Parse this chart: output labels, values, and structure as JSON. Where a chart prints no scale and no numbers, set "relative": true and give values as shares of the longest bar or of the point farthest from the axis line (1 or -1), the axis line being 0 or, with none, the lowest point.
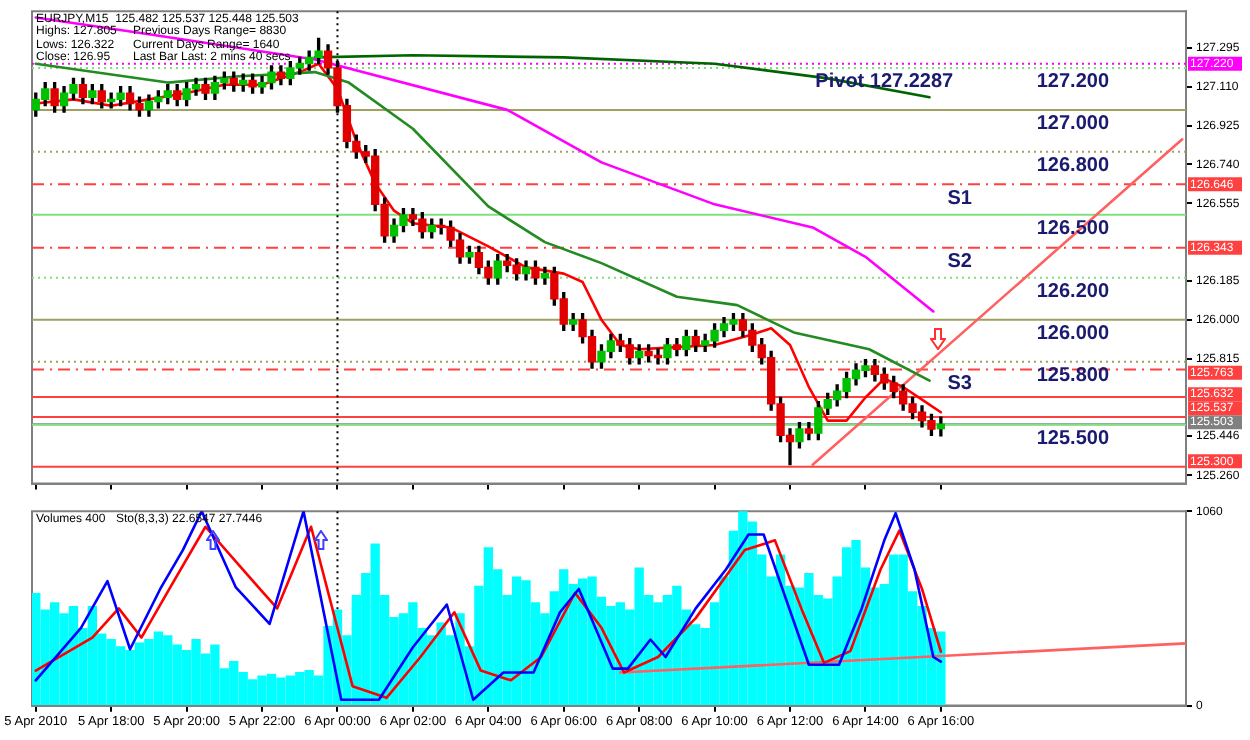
{
  "chart_data": [
    {
      "type": "candlestick",
      "annotations": [
        "EURJPY,M15  125.482 125.537 125.448 125.503",
        "Highs: 127.805",
        "Previous Days Range= 8830",
        "Lows: 126.322",
        "Current Days Range= 1640",
        "Close: 126.95",
        "Last Bar Last: 2 mins 40 secs",
        {
          "text": "Pivot 127.2287",
          "x": "2010-04-06T14:30",
          "y": 127.2
        },
        {
          "text": "127.200",
          "x": "2010-04-06T19:30",
          "y": 127.2
        },
        {
          "text": "127.000",
          "x": "2010-04-06T19:30",
          "y": 127.0
        },
        {
          "text": "126.800",
          "x": "2010-04-06T19:30",
          "y": 126.8
        },
        {
          "text": "S1",
          "x": "2010-04-06T16:30",
          "y": 126.646
        },
        {
          "text": "126.500",
          "x": "2010-04-06T19:30",
          "y": 126.5
        },
        {
          "text": "S2",
          "x": "2010-04-06T16:30",
          "y": 126.343
        },
        {
          "text": "126.200",
          "x": "2010-04-06T19:30",
          "y": 126.2
        },
        {
          "text": "126.000",
          "x": "2010-04-06T19:30",
          "y": 126.0
        },
        {
          "text": "125.800",
          "x": "2010-04-06T19:30",
          "y": 125.8
        },
        {
          "text": "S3",
          "x": "2010-04-06T16:30",
          "y": 125.763
        },
        {
          "text": "125.500",
          "x": "2010-04-06T19:30",
          "y": 125.5
        }
      ],
      "x": [
        "2010-04-05T16:00",
        "2010-04-05T16:15",
        "2010-04-05T16:30",
        "2010-04-05T16:45",
        "2010-04-05T17:00",
        "2010-04-05T17:15",
        "2010-04-05T17:30",
        "2010-04-05T17:45",
        "2010-04-05T18:00",
        "2010-04-05T18:15",
        "2010-04-05T18:30",
        "2010-04-05T18:45",
        "2010-04-05T19:00",
        "2010-04-05T19:15",
        "2010-04-05T19:30",
        "2010-04-05T19:45",
        "2010-04-05T20:00",
        "2010-04-05T20:15",
        "2010-04-05T20:30",
        "2010-04-05T20:45",
        "2010-04-05T21:00",
        "2010-04-05T21:15",
        "2010-04-05T21:30",
        "2010-04-05T21:45",
        "2010-04-05T22:00",
        "2010-04-05T22:15",
        "2010-04-05T22:30",
        "2010-04-05T22:45",
        "2010-04-05T23:00",
        "2010-04-05T23:15",
        "2010-04-05T23:30",
        "2010-04-05T23:45",
        "2010-04-06T00:00",
        "2010-04-06T00:15",
        "2010-04-06T00:30",
        "2010-04-06T00:45",
        "2010-04-06T01:00",
        "2010-04-06T01:15",
        "2010-04-06T01:30",
        "2010-04-06T01:45",
        "2010-04-06T02:00",
        "2010-04-06T02:15",
        "2010-04-06T02:30",
        "2010-04-06T02:45",
        "2010-04-06T03:00",
        "2010-04-06T03:15",
        "2010-04-06T03:30",
        "2010-04-06T03:45",
        "2010-04-06T04:00",
        "2010-04-06T04:15",
        "2010-04-06T04:30",
        "2010-04-06T04:45",
        "2010-04-06T05:00",
        "2010-04-06T05:15",
        "2010-04-06T05:30",
        "2010-04-06T05:45",
        "2010-04-06T06:00",
        "2010-04-06T06:15",
        "2010-04-06T06:30",
        "2010-04-06T06:45",
        "2010-04-06T07:00",
        "2010-04-06T07:15",
        "2010-04-06T07:30",
        "2010-04-06T07:45",
        "2010-04-06T08:00",
        "2010-04-06T08:15",
        "2010-04-06T08:30",
        "2010-04-06T08:45",
        "2010-04-06T09:00",
        "2010-04-06T09:15",
        "2010-04-06T09:30",
        "2010-04-06T09:45",
        "2010-04-06T10:00",
        "2010-04-06T10:15",
        "2010-04-06T10:30",
        "2010-04-06T10:45",
        "2010-04-06T11:00",
        "2010-04-06T11:15",
        "2010-04-06T11:30",
        "2010-04-06T11:45",
        "2010-04-06T12:00",
        "2010-04-06T12:15",
        "2010-04-06T12:30",
        "2010-04-06T12:45",
        "2010-04-06T13:00",
        "2010-04-06T13:15",
        "2010-04-06T13:30",
        "2010-04-06T13:45",
        "2010-04-06T14:00",
        "2010-04-06T14:15",
        "2010-04-06T14:30",
        "2010-04-06T14:45",
        "2010-04-06T15:00",
        "2010-04-06T15:15",
        "2010-04-06T15:30",
        "2010-04-06T15:45",
        "2010-04-06T16:00"
      ],
      "ohlc": [
        [
          127.0,
          127.08,
          126.97,
          127.05
        ],
        [
          127.05,
          127.13,
          127.02,
          127.1
        ],
        [
          127.1,
          127.13,
          126.99,
          127.02
        ],
        [
          127.02,
          127.11,
          126.99,
          127.08
        ],
        [
          127.08,
          127.15,
          127.05,
          127.12
        ],
        [
          127.12,
          127.15,
          127.03,
          127.06
        ],
        [
          127.06,
          127.12,
          127.03,
          127.09
        ],
        [
          127.09,
          127.12,
          127.01,
          127.04
        ],
        [
          127.04,
          127.08,
          127.01,
          127.05
        ],
        [
          127.05,
          127.11,
          127.02,
          127.08
        ],
        [
          127.08,
          127.11,
          127.0,
          127.03
        ],
        [
          127.03,
          127.06,
          126.97,
          127.0
        ],
        [
          127.0,
          127.07,
          126.97,
          127.04
        ],
        [
          127.04,
          127.09,
          127.01,
          127.06
        ],
        [
          127.06,
          127.12,
          127.03,
          127.09
        ],
        [
          127.09,
          127.12,
          127.02,
          127.05
        ],
        [
          127.05,
          127.13,
          127.02,
          127.1
        ],
        [
          127.1,
          127.15,
          127.07,
          127.12
        ],
        [
          127.12,
          127.15,
          127.05,
          127.08
        ],
        [
          127.08,
          127.16,
          127.05,
          127.13
        ],
        [
          127.13,
          127.18,
          127.1,
          127.15
        ],
        [
          127.15,
          127.18,
          127.09,
          127.12
        ],
        [
          127.12,
          127.17,
          127.09,
          127.14
        ],
        [
          127.14,
          127.17,
          127.08,
          127.11
        ],
        [
          127.11,
          127.16,
          127.08,
          127.13
        ],
        [
          127.13,
          127.21,
          127.1,
          127.18
        ],
        [
          127.18,
          127.21,
          127.12,
          127.15
        ],
        [
          127.15,
          127.23,
          127.12,
          127.2
        ],
        [
          127.2,
          127.25,
          127.17,
          127.22
        ],
        [
          127.22,
          127.28,
          127.19,
          127.25
        ],
        [
          127.25,
          127.34,
          127.22,
          127.28
        ],
        [
          127.28,
          127.31,
          127.17,
          127.2
        ],
        [
          127.2,
          127.23,
          126.99,
          127.02
        ],
        [
          127.02,
          127.05,
          126.82,
          126.85
        ],
        [
          126.85,
          126.88,
          126.77,
          126.8
        ],
        [
          126.8,
          126.83,
          126.75,
          126.78
        ],
        [
          126.78,
          126.81,
          126.52,
          126.55
        ],
        [
          126.55,
          126.58,
          126.37,
          126.4
        ],
        [
          126.4,
          126.48,
          126.37,
          126.45
        ],
        [
          126.45,
          126.53,
          126.42,
          126.5
        ],
        [
          126.5,
          126.53,
          126.45,
          126.48
        ],
        [
          126.48,
          126.51,
          126.39,
          126.42
        ],
        [
          126.42,
          126.48,
          126.39,
          126.45
        ],
        [
          126.45,
          126.48,
          126.41,
          126.44
        ],
        [
          126.44,
          126.47,
          126.35,
          126.38
        ],
        [
          126.38,
          126.41,
          126.27,
          126.3
        ],
        [
          126.3,
          126.35,
          126.27,
          126.32
        ],
        [
          126.32,
          126.35,
          126.22,
          126.25
        ],
        [
          126.25,
          126.28,
          126.17,
          126.2
        ],
        [
          126.2,
          126.31,
          126.17,
          126.28
        ],
        [
          126.28,
          126.31,
          126.23,
          126.26
        ],
        [
          126.26,
          126.29,
          126.19,
          126.22
        ],
        [
          126.22,
          126.28,
          126.19,
          126.25
        ],
        [
          126.25,
          126.28,
          126.17,
          126.2
        ],
        [
          126.2,
          126.25,
          126.17,
          126.22
        ],
        [
          126.22,
          126.25,
          126.07,
          126.1
        ],
        [
          126.1,
          126.13,
          125.95,
          125.98
        ],
        [
          125.98,
          126.03,
          125.95,
          126.0
        ],
        [
          126.0,
          126.03,
          125.89,
          125.92
        ],
        [
          125.92,
          125.95,
          125.77,
          125.8
        ],
        [
          125.8,
          125.88,
          125.77,
          125.85
        ],
        [
          125.85,
          125.93,
          125.82,
          125.9
        ],
        [
          125.9,
          125.93,
          125.85,
          125.88
        ],
        [
          125.88,
          125.91,
          125.79,
          125.82
        ],
        [
          125.82,
          125.88,
          125.79,
          125.85
        ],
        [
          125.85,
          125.88,
          125.8,
          125.83
        ],
        [
          125.83,
          125.86,
          125.79,
          125.82
        ],
        [
          125.82,
          125.91,
          125.79,
          125.88
        ],
        [
          125.88,
          125.91,
          125.83,
          125.86
        ],
        [
          125.86,
          125.95,
          125.83,
          125.92
        ],
        [
          125.92,
          125.95,
          125.85,
          125.88
        ],
        [
          125.88,
          125.93,
          125.85,
          125.9
        ],
        [
          125.9,
          125.98,
          125.87,
          125.95
        ],
        [
          125.95,
          126.01,
          125.92,
          125.98
        ],
        [
          125.98,
          126.03,
          125.95,
          126.0
        ],
        [
          126.0,
          126.03,
          125.92,
          125.95
        ],
        [
          125.95,
          125.98,
          125.85,
          125.88
        ],
        [
          125.88,
          125.91,
          125.79,
          125.82
        ],
        [
          125.82,
          125.85,
          125.57,
          125.6
        ],
        [
          125.6,
          125.63,
          125.42,
          125.45
        ],
        [
          125.45,
          125.48,
          125.31,
          125.42
        ],
        [
          125.42,
          125.51,
          125.39,
          125.48
        ],
        [
          125.48,
          125.51,
          125.43,
          125.46
        ],
        [
          125.46,
          125.61,
          125.43,
          125.58
        ],
        [
          125.58,
          125.65,
          125.55,
          125.62
        ],
        [
          125.62,
          125.69,
          125.59,
          125.66
        ],
        [
          125.66,
          125.75,
          125.63,
          125.72
        ],
        [
          125.72,
          125.79,
          125.69,
          125.76
        ],
        [
          125.76,
          125.81,
          125.73,
          125.78
        ],
        [
          125.78,
          125.81,
          125.71,
          125.74
        ],
        [
          125.74,
          125.77,
          125.67,
          125.7
        ],
        [
          125.7,
          125.73,
          125.63,
          125.66
        ],
        [
          125.66,
          125.69,
          125.57,
          125.6
        ],
        [
          125.6,
          125.63,
          125.53,
          125.56
        ],
        [
          125.56,
          125.59,
          125.49,
          125.52
        ],
        [
          125.52,
          125.55,
          125.45,
          125.48
        ],
        [
          125.482,
          125.537,
          125.448,
          125.503
        ]
      ],
      "series": [
        {
          "type": "line",
          "color": "#ff00ff",
          "x": [
            "2010-04-05T16:00",
            "2010-04-05T19:00",
            "2010-04-05T23:24",
            "2010-04-06T04:30",
            "2010-04-06T07:00",
            "2010-04-06T10:00",
            "2010-04-06T12:36",
            "2010-04-06T14:00",
            "2010-04-06T15:48"
          ],
          "values": [
            127.44,
            127.36,
            127.24,
            127.0,
            126.75,
            126.55,
            126.44,
            126.3,
            126.04
          ]
        },
        {
          "type": "line",
          "color": "#006400",
          "x": [
            "2010-04-05T23:24",
            "2010-04-06T02:00",
            "2010-04-06T06:00",
            "2010-04-06T10:00",
            "2010-04-06T13:00",
            "2010-04-06T15:42"
          ],
          "values": [
            127.25,
            127.26,
            127.25,
            127.22,
            127.15,
            127.06
          ]
        },
        {
          "type": "line",
          "color": "#228b22",
          "x": [
            "2010-04-05T16:00",
            "2010-04-05T19:30",
            "2010-04-05T21:24",
            "2010-04-05T23:24",
            "2010-04-06T00:18",
            "2010-04-06T02:00",
            "2010-04-06T04:00",
            "2010-04-06T05:30",
            "2010-04-06T07:00",
            "2010-04-06T09:00",
            "2010-04-06T10:36",
            "2010-04-06T12:06",
            "2010-04-06T14:06",
            "2010-04-06T15:42"
          ],
          "values": [
            127.22,
            127.13,
            127.16,
            127.18,
            127.13,
            126.91,
            126.54,
            126.37,
            126.27,
            126.11,
            126.07,
            125.94,
            125.86,
            125.71
          ]
        },
        {
          "type": "line",
          "color": "#ff0000",
          "x": [
            "2010-04-05T16:00",
            "2010-04-05T17:00",
            "2010-04-05T18:00",
            "2010-04-05T19:00",
            "2010-04-05T20:00",
            "2010-04-05T21:00",
            "2010-04-05T22:00",
            "2010-04-05T23:00",
            "2010-04-05T23:30",
            "2010-04-06T00:00",
            "2010-04-06T00:30",
            "2010-04-06T01:00",
            "2010-04-06T01:30",
            "2010-04-06T02:00",
            "2010-04-06T03:00",
            "2010-04-06T04:00",
            "2010-04-06T05:00",
            "2010-04-06T06:00",
            "2010-04-06T06:30",
            "2010-04-06T07:00",
            "2010-04-06T07:30",
            "2010-04-06T08:00",
            "2010-04-06T09:00",
            "2010-04-06T10:00",
            "2010-04-06T11:00",
            "2010-04-06T11:30",
            "2010-04-06T12:00",
            "2010-04-06T12:30",
            "2010-04-06T13:00",
            "2010-04-06T13:30",
            "2010-04-06T14:00",
            "2010-04-06T14:30",
            "2010-04-06T15:00",
            "2010-04-06T15:30",
            "2010-04-06T16:00"
          ],
          "values": [
            127.03,
            127.05,
            127.02,
            127.05,
            127.08,
            127.12,
            127.12,
            127.18,
            127.22,
            127.1,
            126.85,
            126.65,
            126.52,
            126.46,
            126.44,
            126.35,
            126.25,
            126.22,
            126.18,
            126.0,
            125.88,
            125.86,
            125.87,
            125.88,
            125.93,
            125.96,
            125.88,
            125.68,
            125.52,
            125.52,
            125.63,
            125.72,
            125.68,
            125.62,
            125.56
          ]
        },
        {
          "type": "line",
          "color": "#ff6060",
          "x": [
            "2010-04-06T12:36",
            "2010-04-06T22:24"
          ],
          "values": [
            125.31,
            126.86
          ]
        }
      ],
      "xlim": [
        "2010-04-05T15:54",
        "2010-04-06T22:30"
      ],
      "ylim": [
        125.22,
        127.47
      ],
      "xticks": [
        {
          "value": "2010-04-05T16:00",
          "label": null
        },
        {
          "value": "2010-04-05T18:00",
          "label": null
        },
        {
          "value": "2010-04-05T20:00",
          "label": null
        },
        {
          "value": "2010-04-05T22:00",
          "label": null
        },
        {
          "value": "2010-04-06T00:00",
          "label": null
        },
        {
          "value": "2010-04-06T02:00",
          "label": null
        },
        {
          "value": "2010-04-06T04:00",
          "label": null
        },
        {
          "value": "2010-04-06T06:00",
          "label": null
        },
        {
          "value": "2010-04-06T08:00",
          "label": null
        },
        {
          "value": "2010-04-06T10:00",
          "label": null
        },
        {
          "value": "2010-04-06T12:00",
          "label": null
        },
        {
          "value": "2010-04-06T14:00",
          "label": null
        },
        {
          "value": "2010-04-06T16:00",
          "label": null
        }
      ],
      "yticks": [
        127.295,
        {
          "value": 127.11,
          "label": "127.110"
        },
        126.925,
        {
          "value": 126.74,
          "label": "126.740"
        },
        126.555,
        126.185,
        {
          "value": 126.0,
          "label": "126.000"
        },
        125.815,
        125.446,
        {
          "value": 125.26,
          "label": "125.260"
        }
      ],
      "ref_lines": [
        {
          "axis": "y",
          "value": 127.22,
          "label": "127.220",
          "color": "#ff00ff",
          "line_style": "dotted"
        },
        {
          "axis": "y",
          "value": 127.2,
          "color": "#80e080",
          "line_style": "dotted"
        },
        {
          "axis": "y",
          "value": 127.0,
          "color": "#a0a060",
          "line_style": "solid"
        },
        {
          "axis": "y",
          "value": 126.8,
          "color": "#a0a060",
          "line_style": "dotted"
        },
        {
          "axis": "y",
          "value": 126.646,
          "label": "126.646",
          "color": "#ff4040",
          "line_style": "dashed"
        },
        {
          "axis": "y",
          "value": 126.5,
          "color": "#80e080",
          "line_style": "solid"
        },
        {
          "axis": "y",
          "value": 126.343,
          "label": "126.343",
          "color": "#ff4040",
          "line_style": "dashed"
        },
        {
          "axis": "y",
          "value": 126.2,
          "color": "#80e080",
          "line_style": "dotted"
        },
        {
          "axis": "y",
          "value": 126.0,
          "color": "#a0a060",
          "line_style": "solid"
        },
        {
          "axis": "y",
          "value": 125.8,
          "color": "#a0a060",
          "line_style": "dotted"
        },
        {
          "axis": "y",
          "value": 125.763,
          "label": "125.763",
          "color": "#ff4040",
          "line_style": "dashed"
        },
        {
          "axis": "y",
          "value": 125.632,
          "label": "125.632",
          "color": "#ff4040",
          "line_style": "solid"
        },
        {
          "axis": "y",
          "value": 125.537,
          "label": "125.537",
          "color": "#ff4040",
          "line_style": "solid"
        },
        {
          "axis": "y",
          "value": 125.503,
          "label": "125.503",
          "color": "#808080",
          "line_style": "solid"
        },
        {
          "axis": "y",
          "value": 125.5,
          "color": "#80e080",
          "line_style": "solid"
        },
        {
          "axis": "y",
          "value": 125.3,
          "label": "125.300",
          "color": "#ff4040",
          "line_style": "solid"
        },
        {
          "axis": "x",
          "value": "2010-04-06T00:00",
          "color": "#000000",
          "line_style": "dotted"
        }
      ],
      "grid": false,
      "legend": false,
      "tick_labels": "y",
      "marker": "none"
    },
    {
      "type": "bar",
      "title": "Volumes 400",
      "x": [
        "2010-04-05T16:00",
        "2010-04-05T16:15",
        "2010-04-05T16:30",
        "2010-04-05T16:45",
        "2010-04-05T17:00",
        "2010-04-05T17:15",
        "2010-04-05T17:30",
        "2010-04-05T17:45",
        "2010-04-05T18:00",
        "2010-04-05T18:15",
        "2010-04-05T18:30",
        "2010-04-05T18:45",
        "2010-04-05T19:00",
        "2010-04-05T19:15",
        "2010-04-05T19:30",
        "2010-04-05T19:45",
        "2010-04-05T20:00",
        "2010-04-05T20:15",
        "2010-04-05T20:30",
        "2010-04-05T20:45",
        "2010-04-05T21:00",
        "2010-04-05T21:15",
        "2010-04-05T21:30",
        "2010-04-05T21:45",
        "2010-04-05T22:00",
        "2010-04-05T22:15",
        "2010-04-05T22:30",
        "2010-04-05T22:45",
        "2010-04-05T23:00",
        "2010-04-05T23:15",
        "2010-04-05T23:30",
        "2010-04-05T23:45",
        "2010-04-06T00:00",
        "2010-04-06T00:15",
        "2010-04-06T00:30",
        "2010-04-06T00:45",
        "2010-04-06T01:00",
        "2010-04-06T01:15",
        "2010-04-06T01:30",
        "2010-04-06T01:45",
        "2010-04-06T02:00",
        "2010-04-06T02:15",
        "2010-04-06T02:30",
        "2010-04-06T02:45",
        "2010-04-06T03:00",
        "2010-04-06T03:15",
        "2010-04-06T03:30",
        "2010-04-06T03:45",
        "2010-04-06T04:00",
        "2010-04-06T04:15",
        "2010-04-06T04:30",
        "2010-04-06T04:45",
        "2010-04-06T05:00",
        "2010-04-06T05:15",
        "2010-04-06T05:30",
        "2010-04-06T05:45",
        "2010-04-06T06:00",
        "2010-04-06T06:15",
        "2010-04-06T06:30",
        "2010-04-06T06:45",
        "2010-04-06T07:00",
        "2010-04-06T07:15",
        "2010-04-06T07:30",
        "2010-04-06T07:45",
        "2010-04-06T08:00",
        "2010-04-06T08:15",
        "2010-04-06T08:30",
        "2010-04-06T08:45",
        "2010-04-06T09:00",
        "2010-04-06T09:15",
        "2010-04-06T09:30",
        "2010-04-06T09:45",
        "2010-04-06T10:00",
        "2010-04-06T10:15",
        "2010-04-06T10:30",
        "2010-04-06T10:45",
        "2010-04-06T11:00",
        "2010-04-06T11:15",
        "2010-04-06T11:30",
        "2010-04-06T11:45",
        "2010-04-06T12:00",
        "2010-04-06T12:15",
        "2010-04-06T12:30",
        "2010-04-06T12:45",
        "2010-04-06T13:00",
        "2010-04-06T13:15",
        "2010-04-06T13:30",
        "2010-04-06T13:45",
        "2010-04-06T14:00",
        "2010-04-06T14:15",
        "2010-04-06T14:30",
        "2010-04-06T14:45",
        "2010-04-06T15:00",
        "2010-04-06T15:15",
        "2010-04-06T15:30",
        "2010-04-06T15:45",
        "2010-04-06T16:00"
      ],
      "series": [
        {
          "color": "#00ffff",
          "values": [
            610,
            520,
            560,
            500,
            540,
            420,
            540,
            390,
            360,
            320,
            300,
            340,
            360,
            400,
            380,
            330,
            300,
            360,
            280,
            330,
            200,
            240,
            180,
            140,
            160,
            170,
            150,
            160,
            180,
            190,
            160,
            430,
            520,
            380,
            600,
            720,
            880,
            600,
            480,
            500,
            560,
            420,
            380,
            450,
            380,
            500,
            320,
            650,
            860,
            740,
            600,
            700,
            680,
            560,
            500,
            620,
            740,
            660,
            690,
            700,
            590,
            540,
            560,
            520,
            750,
            600,
            560,
            600,
            650,
            520,
            440,
            420,
            560,
            700,
            950,
            1060,
            1000,
            820,
            700,
            820,
            650,
            640,
            720,
            600,
            580,
            700,
            860,
            900,
            750,
            640,
            660,
            820,
            820,
            620,
            540,
            420,
            400
          ]
        }
      ],
      "xlim": [
        "2010-04-05T15:54",
        "2010-04-06T22:30"
      ],
      "ylim": [
        0,
        1060
      ],
      "xticks": [
        {
          "value": "2010-04-05T16:00",
          "label": null
        },
        {
          "value": "2010-04-05T18:00",
          "label": null
        },
        {
          "value": "2010-04-05T20:00",
          "label": null
        },
        {
          "value": "2010-04-05T22:00",
          "label": null
        },
        {
          "value": "2010-04-06T00:00",
          "label": null
        },
        {
          "value": "2010-04-06T02:00",
          "label": null
        },
        {
          "value": "2010-04-06T04:00",
          "label": null
        },
        {
          "value": "2010-04-06T06:00",
          "label": null
        },
        {
          "value": "2010-04-06T08:00",
          "label": null
        },
        {
          "value": "2010-04-06T10:00",
          "label": null
        },
        {
          "value": "2010-04-06T12:00",
          "label": null
        },
        {
          "value": "2010-04-06T14:00",
          "label": null
        },
        {
          "value": "2010-04-06T16:00",
          "label": null
        }
      ],
      "yticks": [
        0,
        1060
      ],
      "ref_lines": [
        {
          "axis": "x",
          "value": "2010-04-06T00:00",
          "color": "#000000",
          "line_style": "dotted"
        }
      ],
      "grid": false,
      "legend": false,
      "tick_labels": "y",
      "marker": "none"
    },
    {
      "type": "line",
      "title": "Sto(8,3,3) 22.6547 27.7446",
      "relative": true,
      "series": [
        {
          "color": "#0000ff",
          "x": [
            "2010-04-05T16:00",
            "2010-04-05T17:12",
            "2010-04-05T17:54",
            "2010-04-05T18:30",
            "2010-04-05T19:18",
            "2010-04-05T19:54",
            "2010-04-05T20:24",
            "2010-04-05T21:18",
            "2010-04-05T22:12",
            "2010-04-05T23:06",
            "2010-04-06T00:06",
            "2010-04-06T01:06",
            "2010-04-06T02:00",
            "2010-04-06T02:54",
            "2010-04-06T03:36",
            "2010-04-06T04:24",
            "2010-04-06T05:12",
            "2010-04-06T05:54",
            "2010-04-06T06:24",
            "2010-04-06T07:18",
            "2010-04-06T07:42",
            "2010-04-06T08:18",
            "2010-04-06T08:42",
            "2010-04-06T09:30",
            "2010-04-06T10:18",
            "2010-04-06T10:54",
            "2010-04-06T11:18",
            "2010-04-06T11:48",
            "2010-04-06T12:30",
            "2010-04-06T13:18",
            "2010-04-06T13:54",
            "2010-04-06T14:30",
            "2010-04-06T14:48",
            "2010-04-06T15:18",
            "2010-04-06T15:48",
            "2010-04-06T16:00"
          ],
          "values": [
            0.13,
            0.4,
            0.64,
            0.29,
            0.6,
            0.8,
            1,
            0.61,
            0.42,
            1,
            0.03,
            0.03,
            0.3,
            0.52,
            0.03,
            0.17,
            0.17,
            0.48,
            0.6,
            0.19,
            0.19,
            0.34,
            0.25,
            0.5,
            0.7,
            0.88,
            0.88,
            0.6,
            0.21,
            0.21,
            0.5,
            0.85,
            0.99,
            0.7,
            0.25,
            0.2265
          ]
        },
        {
          "color": "#ff0000",
          "x": [
            "2010-04-05T16:00",
            "2010-04-05T17:30",
            "2010-04-05T18:12",
            "2010-04-05T18:48",
            "2010-04-05T19:36",
            "2010-04-05T20:30",
            "2010-04-05T21:24",
            "2010-04-05T22:24",
            "2010-04-05T23:18",
            "2010-04-06T00:24",
            "2010-04-06T01:18",
            "2010-04-06T02:12",
            "2010-04-06T03:06",
            "2010-04-06T03:48",
            "2010-04-06T04:36",
            "2010-04-06T05:24",
            "2010-04-06T06:18",
            "2010-04-06T07:00",
            "2010-04-06T07:36",
            "2010-04-06T08:30",
            "2010-04-06T09:30",
            "2010-04-06T10:48",
            "2010-04-06T11:36",
            "2010-04-06T12:18",
            "2010-04-06T12:54",
            "2010-04-06T13:36",
            "2010-04-06T14:24",
            "2010-04-06T14:54",
            "2010-04-06T15:30",
            "2010-04-06T16:00"
          ],
          "values": [
            0.18,
            0.35,
            0.5,
            0.35,
            0.62,
            0.92,
            0.72,
            0.5,
            0.92,
            0.1,
            0.04,
            0.25,
            0.48,
            0.18,
            0.13,
            0.25,
            0.58,
            0.4,
            0.17,
            0.25,
            0.45,
            0.8,
            0.85,
            0.5,
            0.22,
            0.28,
            0.7,
            0.9,
            0.6,
            0.2774
          ]
        },
        {
          "color": "#ff6060",
          "x": [
            "2010-04-06T07:30",
            "2010-04-06T22:30"
          ],
          "values": [
            0.17,
            0.32
          ]
        }
      ],
      "xlim": [
        "2010-04-05T15:54",
        "2010-04-06T22:30"
      ],
      "xticks": [
        {
          "value": "2010-04-05T16:00",
          "label": "5 Apr 2010"
        },
        {
          "value": "2010-04-05T18:00",
          "label": "5 Apr 18:00"
        },
        {
          "value": "2010-04-05T20:00",
          "label": "5 Apr 20:00"
        },
        {
          "value": "2010-04-05T22:00",
          "label": "5 Apr 22:00"
        },
        {
          "value": "2010-04-06T00:00",
          "label": "6 Apr 00:00"
        },
        {
          "value": "2010-04-06T02:00",
          "label": "6 Apr 02:00"
        },
        {
          "value": "2010-04-06T04:00",
          "label": "6 Apr 04:00"
        },
        {
          "value": "2010-04-06T06:00",
          "label": "6 Apr 06:00"
        },
        {
          "value": "2010-04-06T08:00",
          "label": "6 Apr 08:00"
        },
        {
          "value": "2010-04-06T10:00",
          "label": "6 Apr 10:00"
        },
        {
          "value": "2010-04-06T12:00",
          "label": "6 Apr 12:00"
        },
        {
          "value": "2010-04-06T14:00",
          "label": "6 Apr 14:00"
        },
        {
          "value": "2010-04-06T16:00",
          "label": "6 Apr 16:00"
        }
      ],
      "grid": false,
      "legend": false,
      "tick_labels": "x",
      "marker": "none"
    }
  ]
}
